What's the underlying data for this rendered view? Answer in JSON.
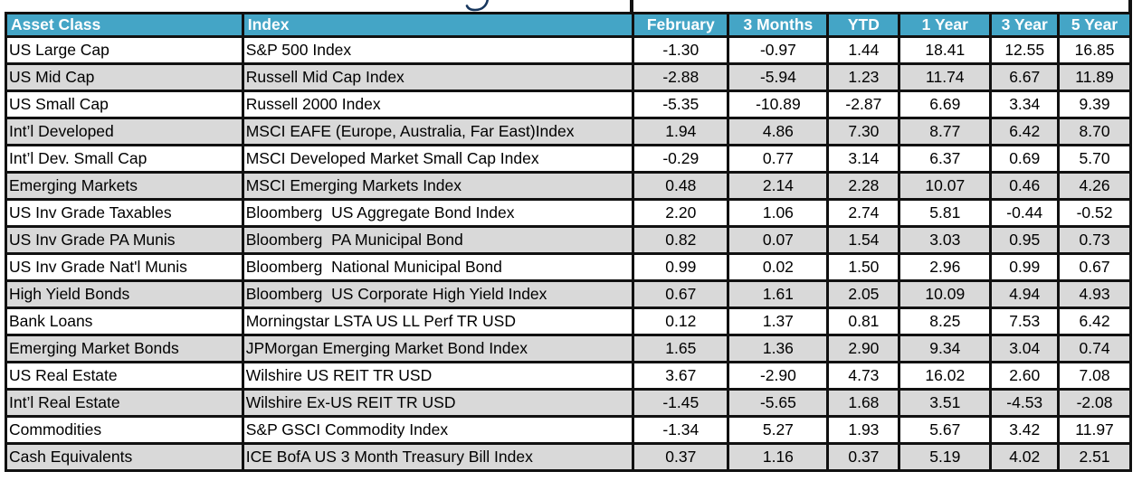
{
  "page": {
    "cropped_title_glyph": "y-descender",
    "colors": {
      "header_bg": "#44a5c6",
      "header_text": "#ffffff",
      "row_stripe": "#d9d9d9",
      "grid_border": "#111111",
      "negative_value": "#b00000",
      "positive_value": "#000000",
      "title_fragment": "#17375e"
    }
  },
  "table": {
    "columns": [
      {
        "key": "asset_class",
        "label": "Asset Class"
      },
      {
        "key": "index",
        "label": "Index"
      },
      {
        "key": "february",
        "label": "February"
      },
      {
        "key": "three_months",
        "label": "3 Months"
      },
      {
        "key": "ytd",
        "label": "YTD"
      },
      {
        "key": "one_year",
        "label": "1 Year"
      },
      {
        "key": "three_year",
        "label": "3 Year"
      },
      {
        "key": "five_year",
        "label": "5 Year"
      }
    ],
    "rows": [
      {
        "asset_class": "US Large Cap",
        "index": "S&P 500 Index",
        "values": [
          "-1.30",
          "-0.97",
          "1.44",
          "18.41",
          "12.55",
          "16.85"
        ]
      },
      {
        "asset_class": "US Mid Cap",
        "index": "Russell Mid Cap Index",
        "values": [
          "-2.88",
          "-5.94",
          "1.23",
          "11.74",
          "6.67",
          "11.89"
        ]
      },
      {
        "asset_class": "US Small Cap",
        "index": "Russell 2000 Index",
        "values": [
          "-5.35",
          "-10.89",
          "-2.87",
          "6.69",
          "3.34",
          "9.39"
        ]
      },
      {
        "asset_class": "Int’l Developed",
        "index": "MSCI EAFE (Europe, Australia, Far East)Index",
        "values": [
          "1.94",
          "4.86",
          "7.30",
          "8.77",
          "6.42",
          "8.70"
        ]
      },
      {
        "asset_class": "Int’l Dev. Small Cap",
        "index": "MSCI Developed Market Small Cap Index",
        "values": [
          "-0.29",
          "0.77",
          "3.14",
          "6.37",
          "0.69",
          "5.70"
        ]
      },
      {
        "asset_class": "Emerging Markets",
        "index": "MSCI Emerging Markets Index",
        "values": [
          "0.48",
          "2.14",
          "2.28",
          "10.07",
          "0.46",
          "4.26"
        ]
      },
      {
        "asset_class": "US Inv Grade Taxables",
        "index": "Bloomberg  US Aggregate Bond Index",
        "values": [
          "2.20",
          "1.06",
          "2.74",
          "5.81",
          "-0.44",
          "-0.52"
        ]
      },
      {
        "asset_class": "US Inv Grade PA Munis",
        "index": "Bloomberg  PA Municipal Bond",
        "values": [
          "0.82",
          "0.07",
          "1.54",
          "3.03",
          "0.95",
          "0.73"
        ]
      },
      {
        "asset_class": "US Inv Grade Nat'l Munis",
        "index": "Bloomberg  National Municipal Bond",
        "values": [
          "0.99",
          "0.02",
          "1.50",
          "2.96",
          "0.99",
          "0.67"
        ]
      },
      {
        "asset_class": "High Yield Bonds",
        "index": "Bloomberg  US Corporate High Yield Index",
        "values": [
          "0.67",
          "1.61",
          "2.05",
          "10.09",
          "4.94",
          "4.93"
        ]
      },
      {
        "asset_class": "Bank Loans",
        "index": "Morningstar LSTA US LL Perf TR USD",
        "values": [
          "0.12",
          "1.37",
          "0.81",
          "8.25",
          "7.53",
          "6.42"
        ]
      },
      {
        "asset_class": "Emerging Market Bonds",
        "index": "JPMorgan Emerging Market Bond Index",
        "values": [
          "1.65",
          "1.36",
          "2.90",
          "9.34",
          "3.04",
          "0.74"
        ]
      },
      {
        "asset_class": "US Real Estate",
        "index": "Wilshire US REIT TR USD",
        "values": [
          "3.67",
          "-2.90",
          "4.73",
          "16.02",
          "2.60",
          "7.08"
        ]
      },
      {
        "asset_class": "Int’l Real Estate",
        "index": "Wilshire Ex-US REIT TR USD",
        "values": [
          "-1.45",
          "-5.65",
          "1.68",
          "3.51",
          "-4.53",
          "-2.08"
        ]
      },
      {
        "asset_class": "Commodities",
        "index": "S&P GSCI Commodity Index",
        "values": [
          "-1.34",
          "5.27",
          "1.93",
          "5.67",
          "3.42",
          "11.97"
        ]
      },
      {
        "asset_class": "Cash Equivalents",
        "index": "ICE BofA US 3 Month Treasury Bill Index",
        "values": [
          "0.37",
          "1.16",
          "0.37",
          "5.19",
          "4.02",
          "2.51"
        ]
      }
    ]
  }
}
